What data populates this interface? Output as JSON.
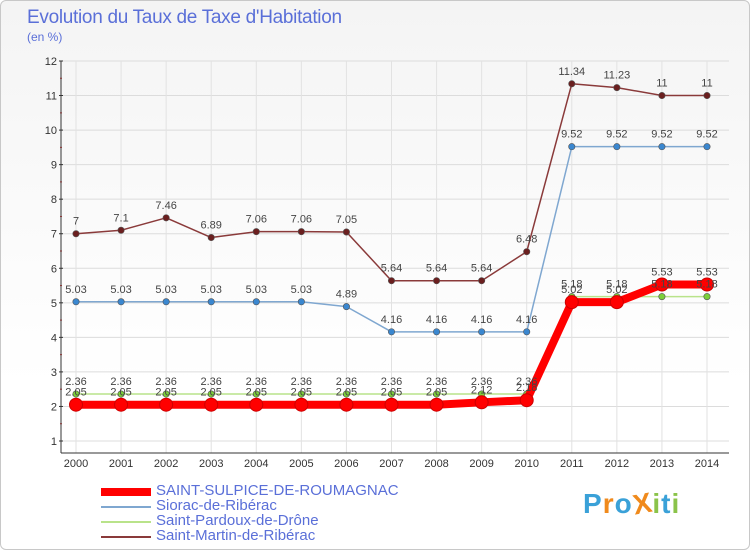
{
  "header": {
    "title": "Evolution du Taux de Taxe d'Habitation",
    "unit": "(en %)"
  },
  "logo": {
    "text": "ProXiti",
    "letters": [
      "P",
      "r",
      "o",
      "X",
      "i",
      "t",
      "i"
    ],
    "colors": [
      "#3aa1d8",
      "#f08a1c",
      "#3aa1d8",
      "#f08a1c",
      "#8bc34a",
      "#3aa1d8",
      "#8bc34a"
    ]
  },
  "chart_data": {
    "type": "line",
    "title": "Evolution du Taux de Taxe d'Habitation",
    "ylabel": "(en %)",
    "xlabel": "",
    "categories": [
      "2000",
      "2001",
      "2002",
      "2003",
      "2004",
      "2005",
      "2006",
      "2007",
      "2008",
      "2009",
      "2010",
      "2011",
      "2012",
      "2013",
      "2014"
    ],
    "ylim": [
      1,
      12
    ],
    "yticks": [
      "1",
      "2",
      "3",
      "4",
      "5",
      "6",
      "7",
      "8",
      "9",
      "10",
      "11",
      "12"
    ],
    "grid": true,
    "legend_position": "bottom",
    "series": [
      {
        "name": "SAINT-SULPICE-DE-ROUMAGNAC",
        "color": "#ff0000",
        "marker_color": "#ff0000",
        "width": 8,
        "values": [
          2.05,
          2.05,
          2.05,
          2.05,
          2.05,
          2.05,
          2.05,
          2.05,
          2.05,
          2.12,
          2.18,
          5.02,
          5.02,
          5.53,
          5.53
        ],
        "labels": [
          "2.05",
          "2.05",
          "2.05",
          "2.05",
          "2.05",
          "2.05",
          "2.05",
          "2.05",
          "2.05",
          "2.12",
          "2.18",
          "5.02",
          "5.02",
          "5.53",
          "5.53"
        ]
      },
      {
        "name": "Siorac-de-Ribérac",
        "color": "#7fa7d0",
        "marker_color": "#3a87d0",
        "width": 1.5,
        "values": [
          5.03,
          5.03,
          5.03,
          5.03,
          5.03,
          5.03,
          4.89,
          4.16,
          4.16,
          4.16,
          4.16,
          9.52,
          9.52,
          9.52,
          9.52
        ],
        "labels": [
          "5.03",
          "5.03",
          "5.03",
          "5.03",
          "5.03",
          "5.03",
          "4.89",
          "4.16",
          "4.16",
          "4.16",
          "4.16",
          "9.52",
          "9.52",
          "9.52",
          "9.52"
        ]
      },
      {
        "name": "Saint-Pardoux-de-Drône",
        "color": "#b9e38a",
        "marker_color": "#7ccf3a",
        "width": 1.5,
        "values": [
          2.36,
          2.36,
          2.36,
          2.36,
          2.36,
          2.36,
          2.36,
          2.36,
          2.36,
          2.36,
          2.36,
          5.18,
          5.18,
          5.18,
          5.18
        ],
        "labels": [
          "2.36",
          "2.36",
          "2.36",
          "2.36",
          "2.36",
          "2.36",
          "2.36",
          "2.36",
          "2.36",
          "2.36",
          "2.36",
          "5.18",
          "5.18",
          "5.18",
          "5.18"
        ]
      },
      {
        "name": "Saint-Martin-de-Ribérac",
        "color": "#8a3a3a",
        "marker_color": "#6b1f1f",
        "width": 1.5,
        "values": [
          7,
          7.1,
          7.46,
          6.89,
          7.06,
          7.06,
          7.05,
          5.64,
          5.64,
          5.64,
          6.48,
          11.34,
          11.23,
          11,
          11
        ],
        "labels": [
          "7",
          "7.1",
          "7.46",
          "6.89",
          "7.06",
          "7.06",
          "7.05",
          "5.64",
          "5.64",
          "5.64",
          "6.48",
          "11.34",
          "11.23",
          "11",
          "11"
        ]
      }
    ]
  }
}
